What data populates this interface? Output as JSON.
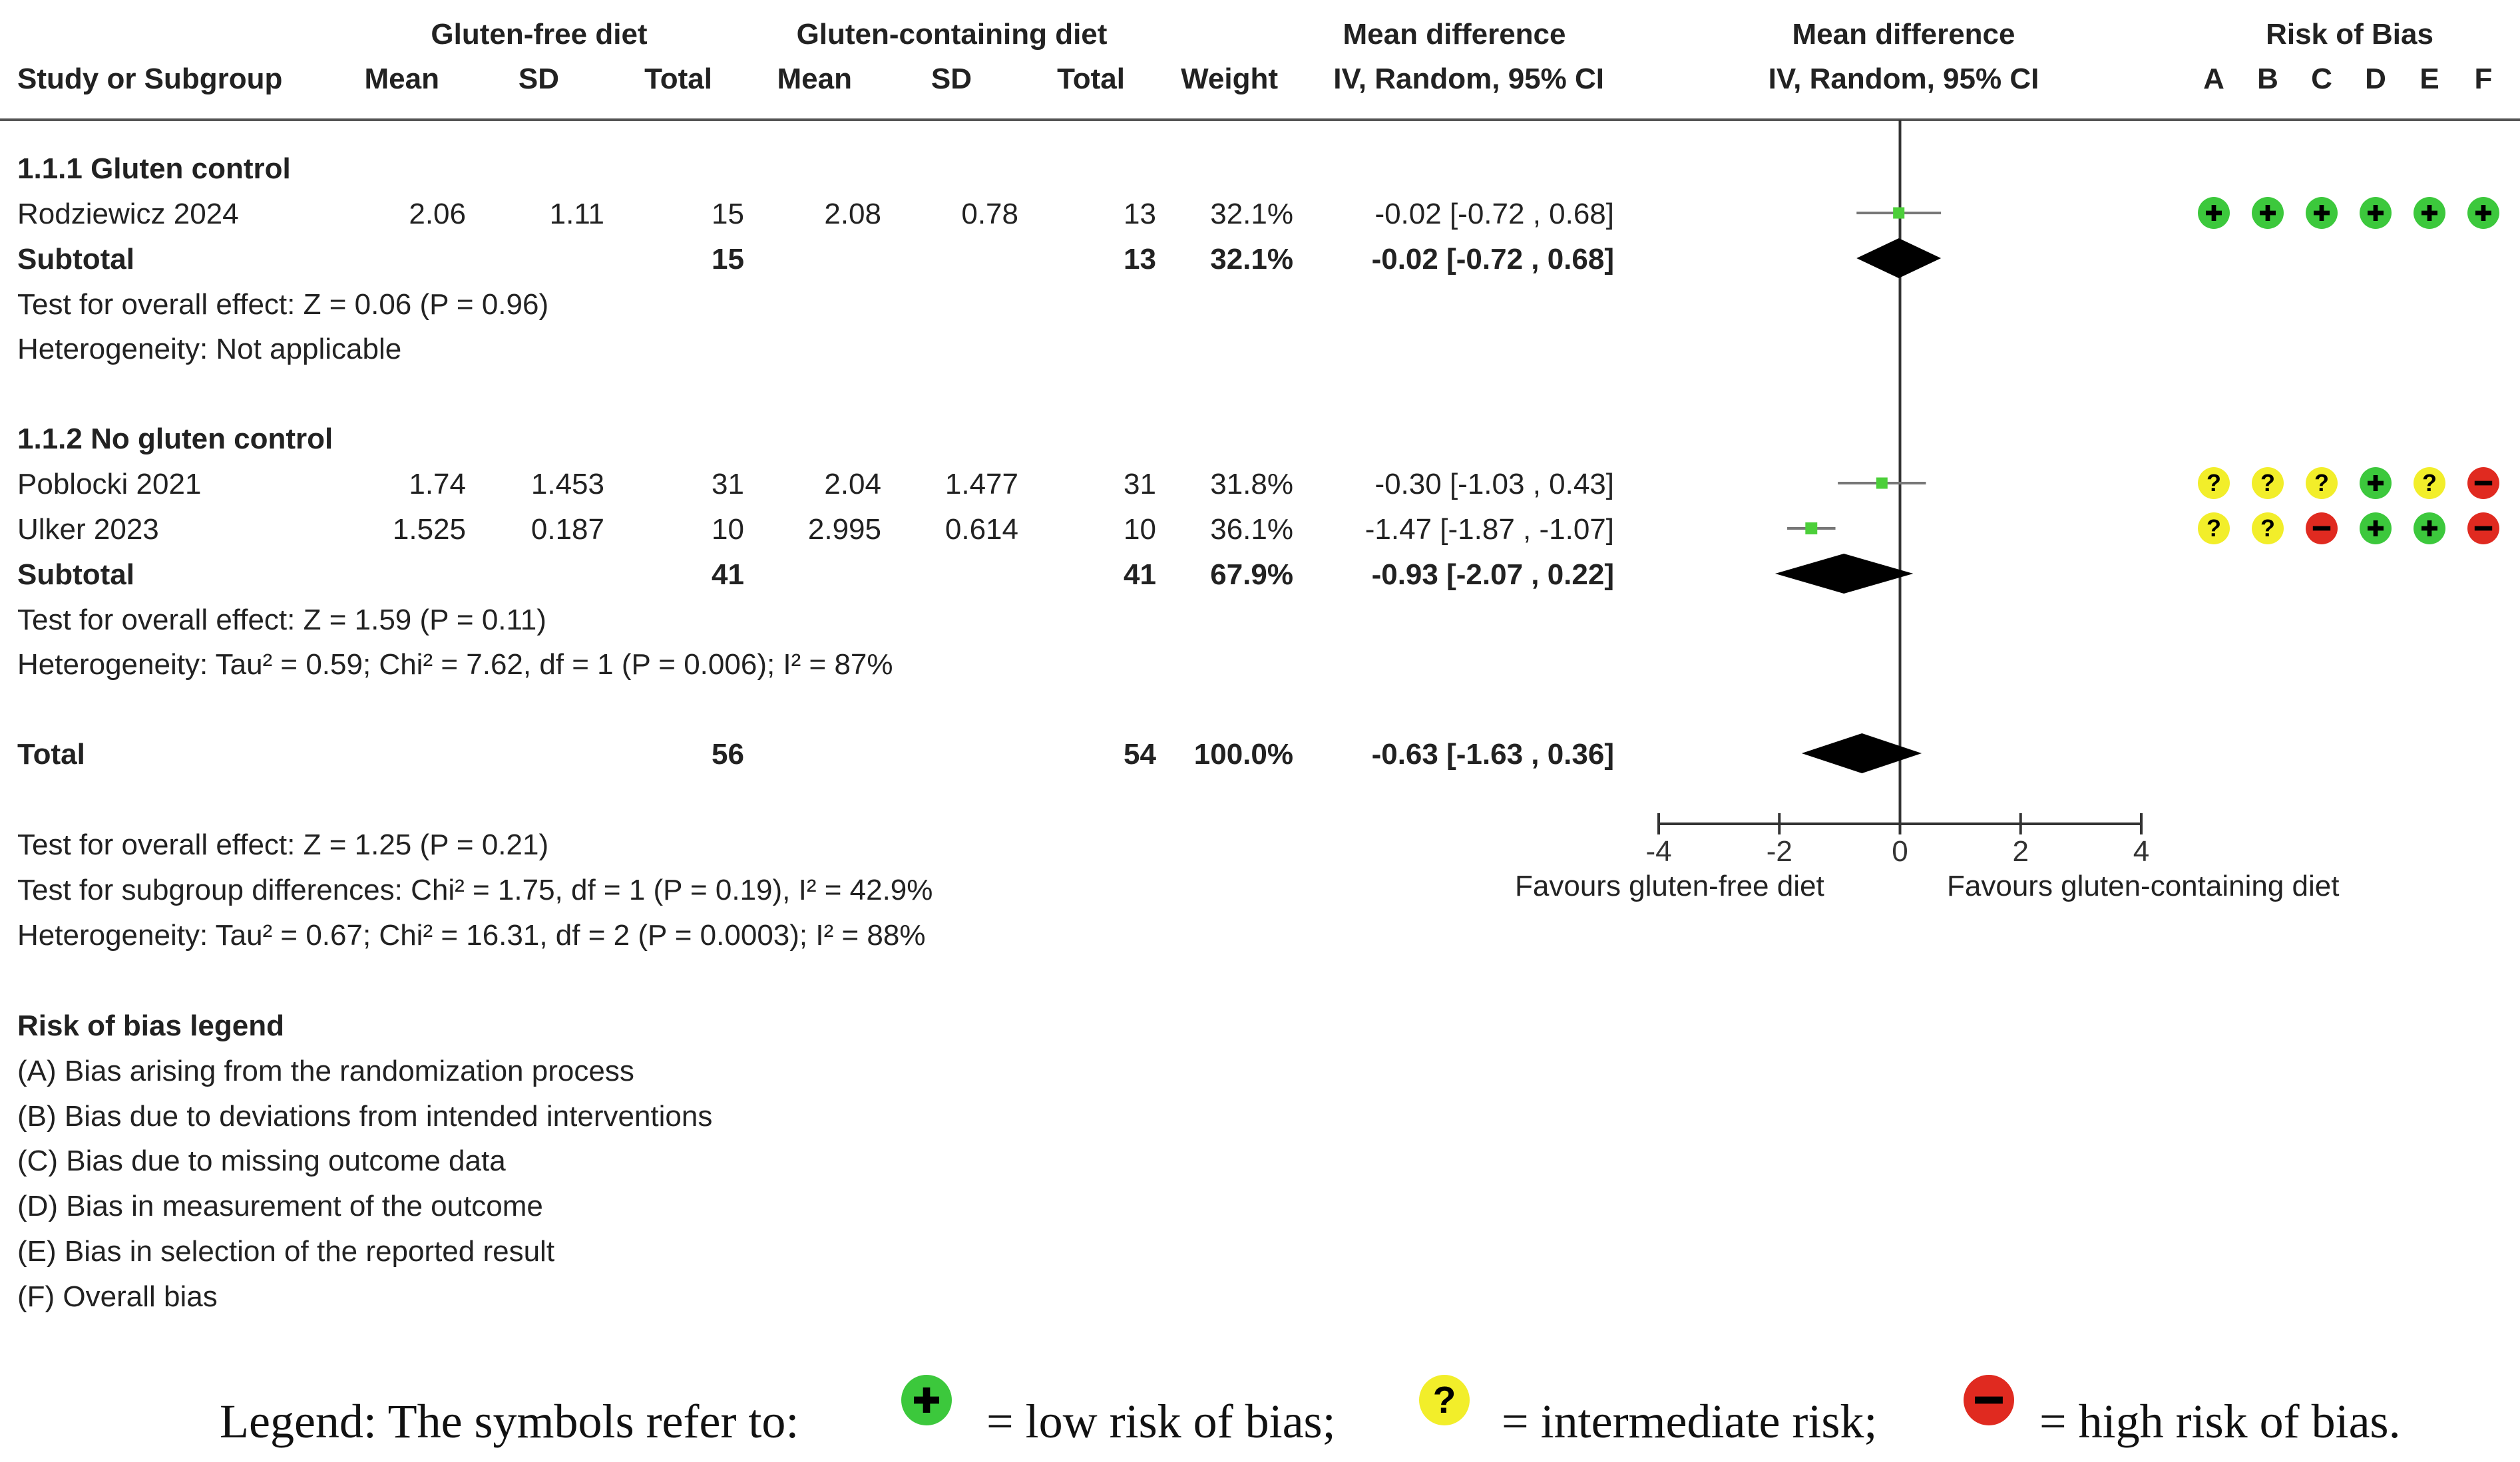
{
  "header": {
    "group1": "Gluten-free diet",
    "group2": "Gluten-containing diet",
    "md_col_title": "Mean difference",
    "md_col_method": "IV, Random, 95% CI",
    "plot_title": "Mean difference",
    "plot_method": "IV, Random, 95% CI",
    "rob_title": "Risk of Bias",
    "study_col": "Study or Subgroup",
    "mean": "Mean",
    "sd": "SD",
    "total": "Total",
    "weight": "Weight"
  },
  "subgroups": [
    {
      "title": "1.1.1 Gluten control",
      "studies": [
        {
          "name": "Rodziewicz 2024",
          "m1": "2.06",
          "sd1": "1.11",
          "n1": "15",
          "m2": "2.08",
          "sd2": "0.78",
          "n2": "13",
          "weight": "32.1%",
          "ci": "-0.02 [-0.72 , 0.68]",
          "rob": [
            "+",
            "+",
            "+",
            "+",
            "+",
            "+"
          ]
        }
      ],
      "subtotal": {
        "label": "Subtotal",
        "n1": "15",
        "n2": "13",
        "weight": "32.1%",
        "ci": "-0.02 [-0.72 , 0.68]"
      },
      "effect": "Test for overall effect: Z = 0.06 (P = 0.96)",
      "heterogeneity": "Heterogeneity: Not applicable"
    },
    {
      "title": "1.1.2 No gluten control",
      "studies": [
        {
          "name": "Poblocki 2021",
          "m1": "1.74",
          "sd1": "1.453",
          "n1": "31",
          "m2": "2.04",
          "sd2": "1.477",
          "n2": "31",
          "weight": "31.8%",
          "ci": "-0.30 [-1.03 , 0.43]",
          "rob": [
            "?",
            "?",
            "?",
            "+",
            "?",
            "-"
          ]
        },
        {
          "name": "Ulker 2023",
          "m1": "1.525",
          "sd1": "0.187",
          "n1": "10",
          "m2": "2.995",
          "sd2": "0.614",
          "n2": "10",
          "weight": "36.1%",
          "ci": "-1.47 [-1.87 , -1.07]",
          "rob": [
            "?",
            "?",
            "-",
            "+",
            "+",
            "-"
          ]
        }
      ],
      "subtotal": {
        "label": "Subtotal",
        "n1": "41",
        "n2": "41",
        "weight": "67.9%",
        "ci": "-0.93 [-2.07 , 0.22]"
      },
      "effect": "Test for overall effect: Z = 1.59 (P = 0.11)",
      "heterogeneity": "Heterogeneity: Tau² = 0.59; Chi² = 7.62, df = 1 (P = 0.006); I² = 87%"
    }
  ],
  "total": {
    "label": "Total",
    "n1": "56",
    "n2": "54",
    "weight": "100.0%",
    "ci": "-0.63 [-1.63 , 0.36]"
  },
  "overall_tests": [
    "Test for overall effect: Z = 1.25 (P = 0.21)",
    "Test for subgroup differences: Chi² = 1.75, df = 1 (P = 0.19), I² = 42.9%",
    "Heterogeneity: Tau² = 0.67; Chi² = 16.31, df = 2 (P = 0.0003); I² = 88%"
  ],
  "rob_legend": {
    "title": "Risk of bias legend",
    "items": [
      "(A) Bias arising from the randomization process",
      "(B) Bias due to deviations from intended interventions",
      "(C) Bias due to missing outcome data",
      "(D) Bias in measurement of the outcome",
      "(E) Bias in selection of the reported result",
      "(F) Overall bias"
    ]
  },
  "bottom_legend": {
    "prefix": "Legend: The symbols refer to:",
    "low": "= low risk of bias;",
    "intermediate": "= intermediate risk;",
    "high": "= high risk of bias."
  },
  "colors": {
    "low": "#3cc83c",
    "intermediate": "#f2ee2a",
    "high": "#e02a20",
    "square": "#4ccf3a",
    "diamond": "#000000",
    "axis": "#333333"
  },
  "chart_data": {
    "type": "forest",
    "title": "Mean difference IV, Random, 95% CI",
    "xlabel_left": "Favours gluten-free diet",
    "xlabel_right": "Favours gluten-containing diet",
    "xlim": [
      -4,
      4
    ],
    "xticks": [
      -4,
      -2,
      0,
      2,
      4
    ],
    "rob_domains": [
      "A",
      "B",
      "C",
      "D",
      "E",
      "F"
    ],
    "rows": [
      {
        "label": "Rodziewicz 2024",
        "kind": "study",
        "est": -0.02,
        "lo": -0.72,
        "hi": 0.68,
        "weight": 32.1
      },
      {
        "label": "Subtotal 1.1.1",
        "kind": "diamond",
        "est": -0.02,
        "lo": -0.72,
        "hi": 0.68
      },
      {
        "label": "Poblocki 2021",
        "kind": "study",
        "est": -0.3,
        "lo": -1.03,
        "hi": 0.43,
        "weight": 31.8
      },
      {
        "label": "Ulker 2023",
        "kind": "study",
        "est": -1.47,
        "lo": -1.87,
        "hi": -1.07,
        "weight": 36.1
      },
      {
        "label": "Subtotal 1.1.2",
        "kind": "diamond",
        "est": -0.93,
        "lo": -2.07,
        "hi": 0.22
      },
      {
        "label": "Total",
        "kind": "diamond",
        "est": -0.63,
        "lo": -1.63,
        "hi": 0.36
      }
    ]
  }
}
